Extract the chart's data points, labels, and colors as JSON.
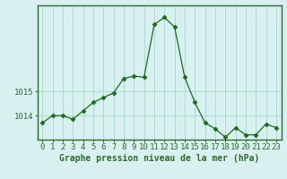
{
  "x": [
    0,
    1,
    2,
    3,
    4,
    5,
    6,
    7,
    8,
    9,
    10,
    11,
    12,
    13,
    14,
    15,
    16,
    17,
    18,
    19,
    20,
    21,
    22,
    23
  ],
  "y": [
    1013.7,
    1014.0,
    1014.0,
    1013.85,
    1014.2,
    1014.55,
    1014.75,
    1014.95,
    1015.55,
    1015.65,
    1015.6,
    1017.8,
    1018.1,
    1017.7,
    1015.6,
    1014.55,
    1013.7,
    1013.45,
    1013.1,
    1013.5,
    1013.2,
    1013.2,
    1013.65,
    1013.5
  ],
  "line_color": "#1a6b1a",
  "marker": "D",
  "marker_size": 2.5,
  "background_color": "#d8f0f0",
  "grid_color": "#aaddcc",
  "border_color": "#2d6b2d",
  "xlabel": "Graphe pression niveau de la mer (hPa)",
  "xlabel_fontsize": 7,
  "yticks": [
    1014,
    1015
  ],
  "ylim": [
    1013.0,
    1018.6
  ],
  "xlim": [
    -0.5,
    23.5
  ],
  "xtick_labels": [
    "0",
    "1",
    "2",
    "3",
    "4",
    "5",
    "6",
    "7",
    "8",
    "9",
    "10",
    "11",
    "12",
    "13",
    "14",
    "15",
    "16",
    "17",
    "18",
    "19",
    "20",
    "21",
    "22",
    "23"
  ],
  "tick_fontsize": 6.5
}
